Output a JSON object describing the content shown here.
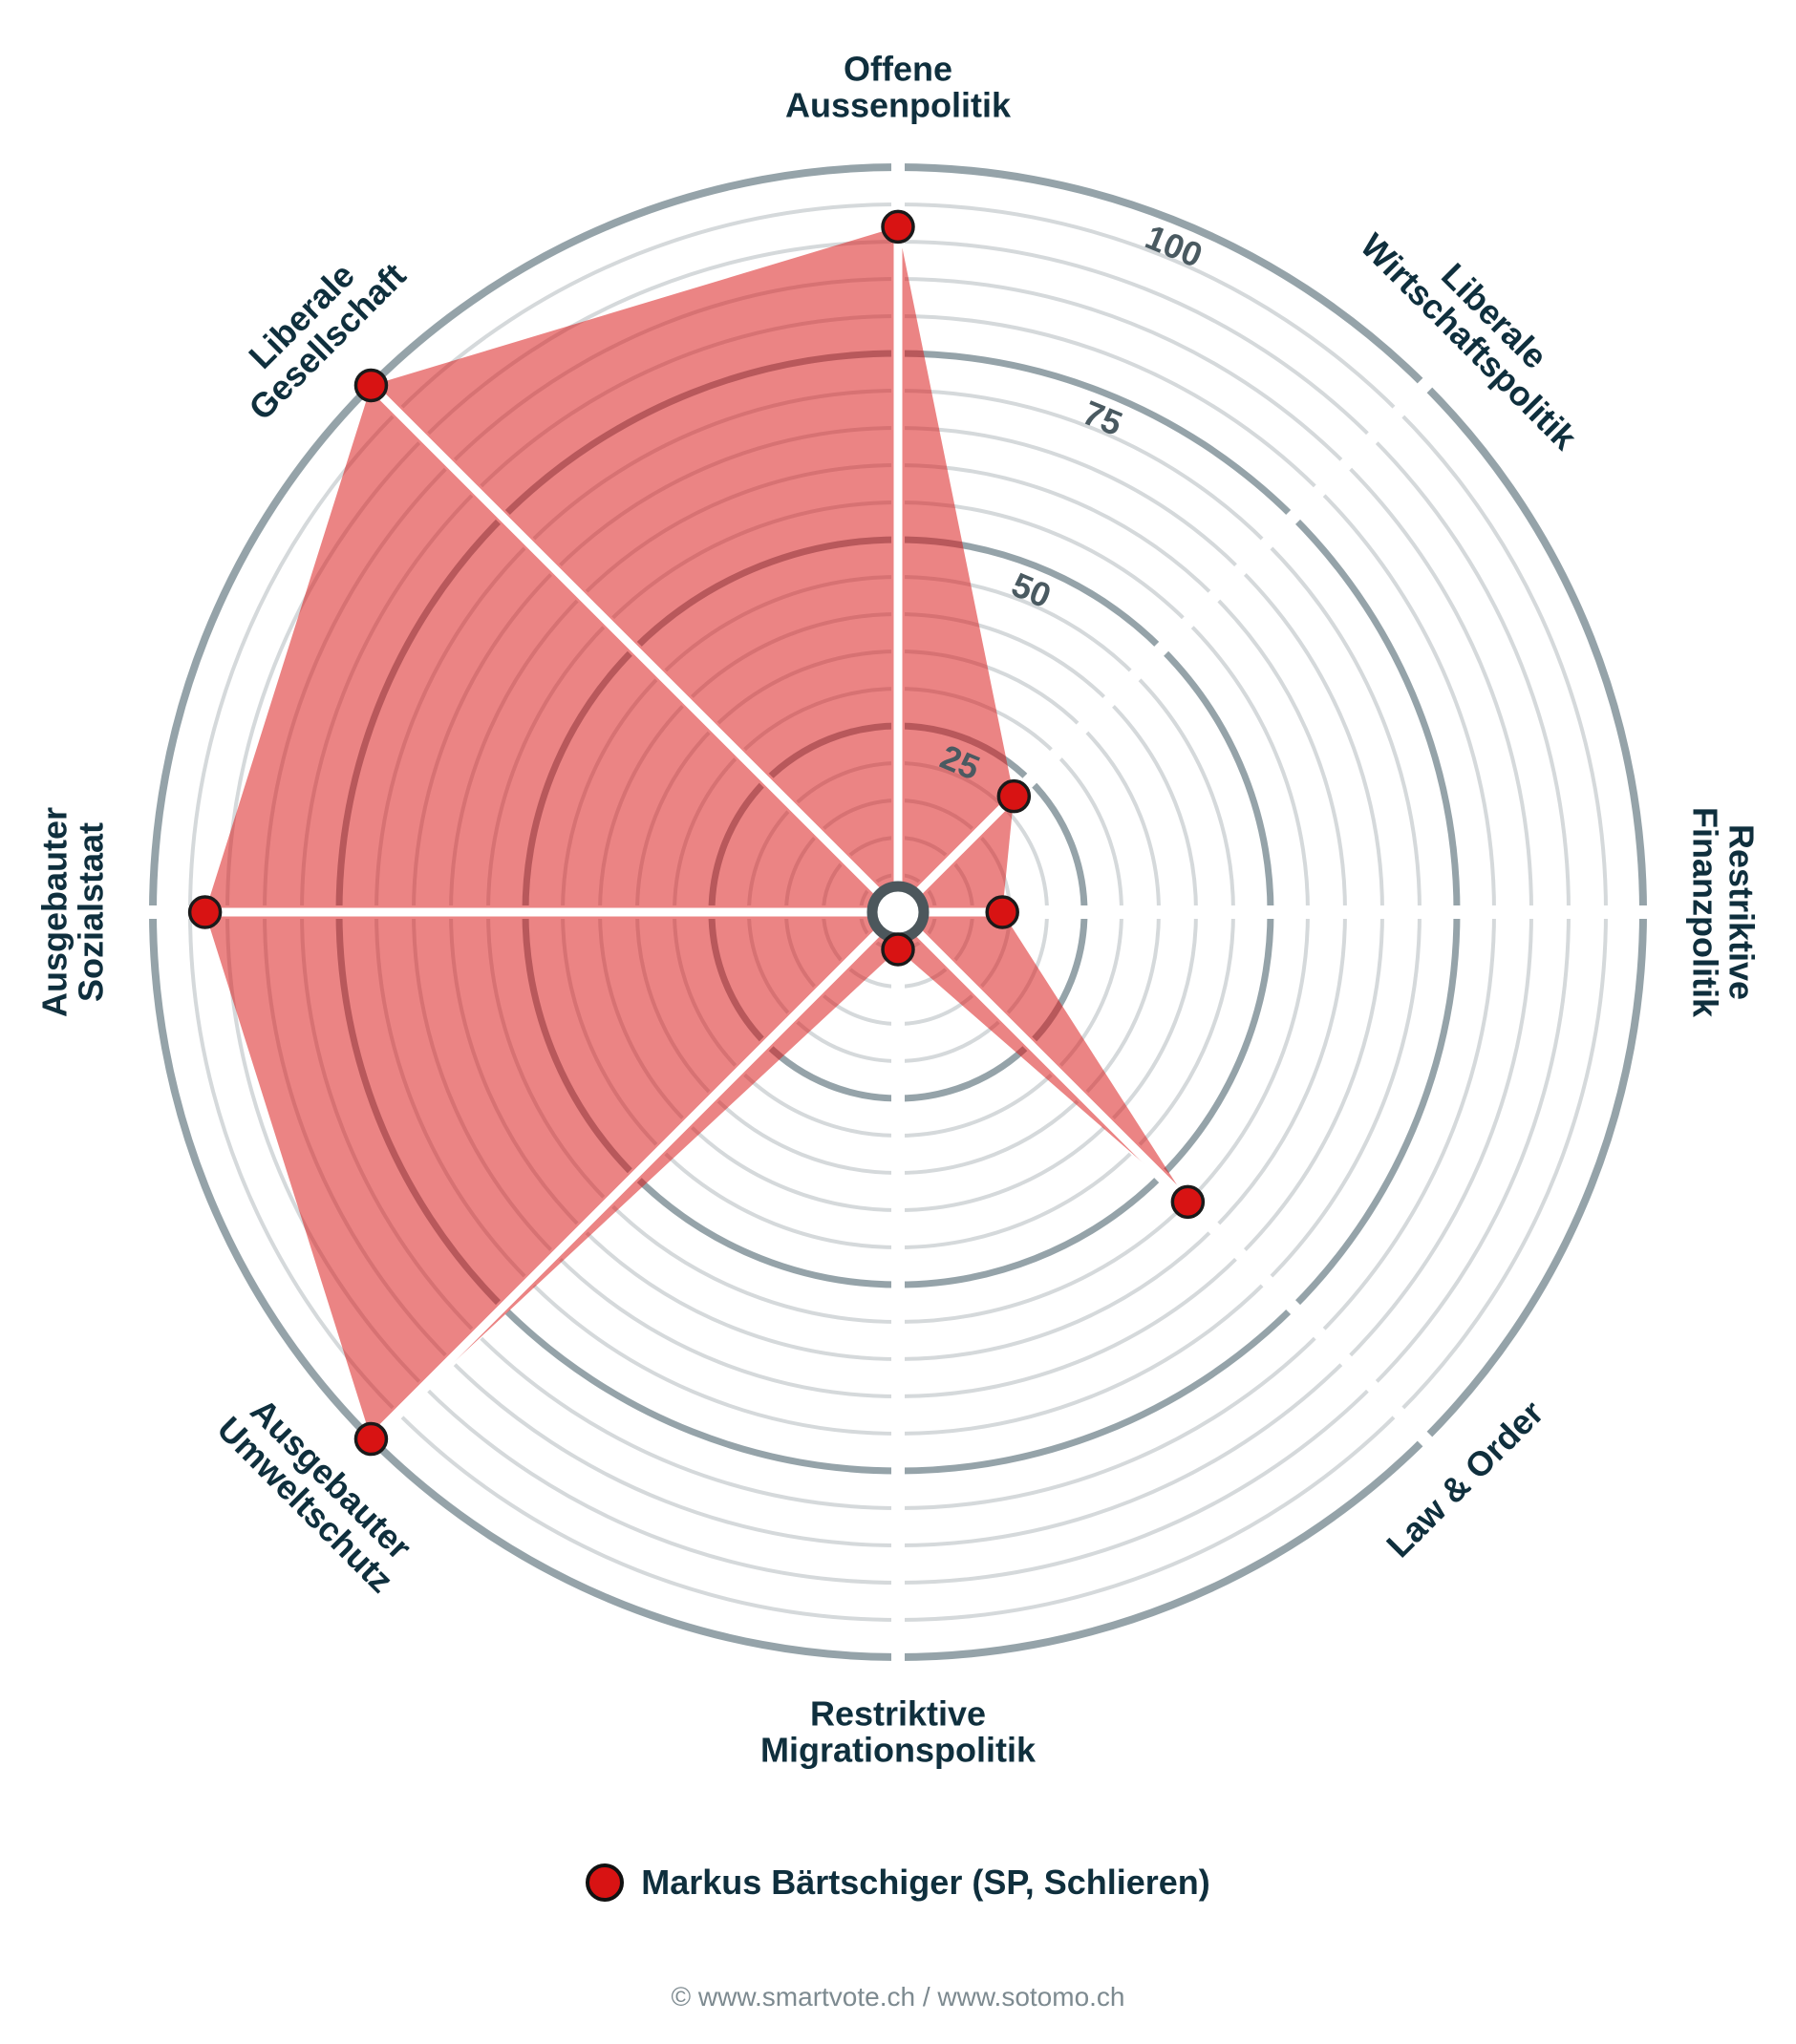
{
  "chart_data": {
    "type": "radar",
    "axes": [
      {
        "label_lines": [
          "Offene",
          "Aussenpolitik"
        ]
      },
      {
        "label_lines": [
          "Liberale",
          "Wirtschaftspolitik"
        ]
      },
      {
        "label_lines": [
          "Restriktive",
          "Finanzpolitik"
        ]
      },
      {
        "label_lines": [
          "Law & Order"
        ]
      },
      {
        "label_lines": [
          "Restriktive",
          "Migrationspolitik"
        ]
      },
      {
        "label_lines": [
          "Ausgebauter",
          "Umweltschutz"
        ]
      },
      {
        "label_lines": [
          "Ausgebauter",
          "Sozialstaat"
        ]
      },
      {
        "label_lines": [
          "Liberale",
          "Gesellschaft"
        ]
      }
    ],
    "series": [
      {
        "name": "Markus Bärtschiger (SP, Schlieren)",
        "color": "#d81313",
        "values": [
          92,
          22,
          14,
          55,
          5,
          100,
          93,
          100
        ]
      }
    ],
    "range": [
      0,
      100
    ],
    "ticks": [
      "25",
      "50",
      "75",
      "100"
    ],
    "tick_values": [
      25,
      50,
      75,
      100
    ]
  },
  "legend": {
    "label": "Markus Bärtschiger (SP, Schlieren)"
  },
  "footer": "© www.smartvote.ch / www.sotomo.ch"
}
